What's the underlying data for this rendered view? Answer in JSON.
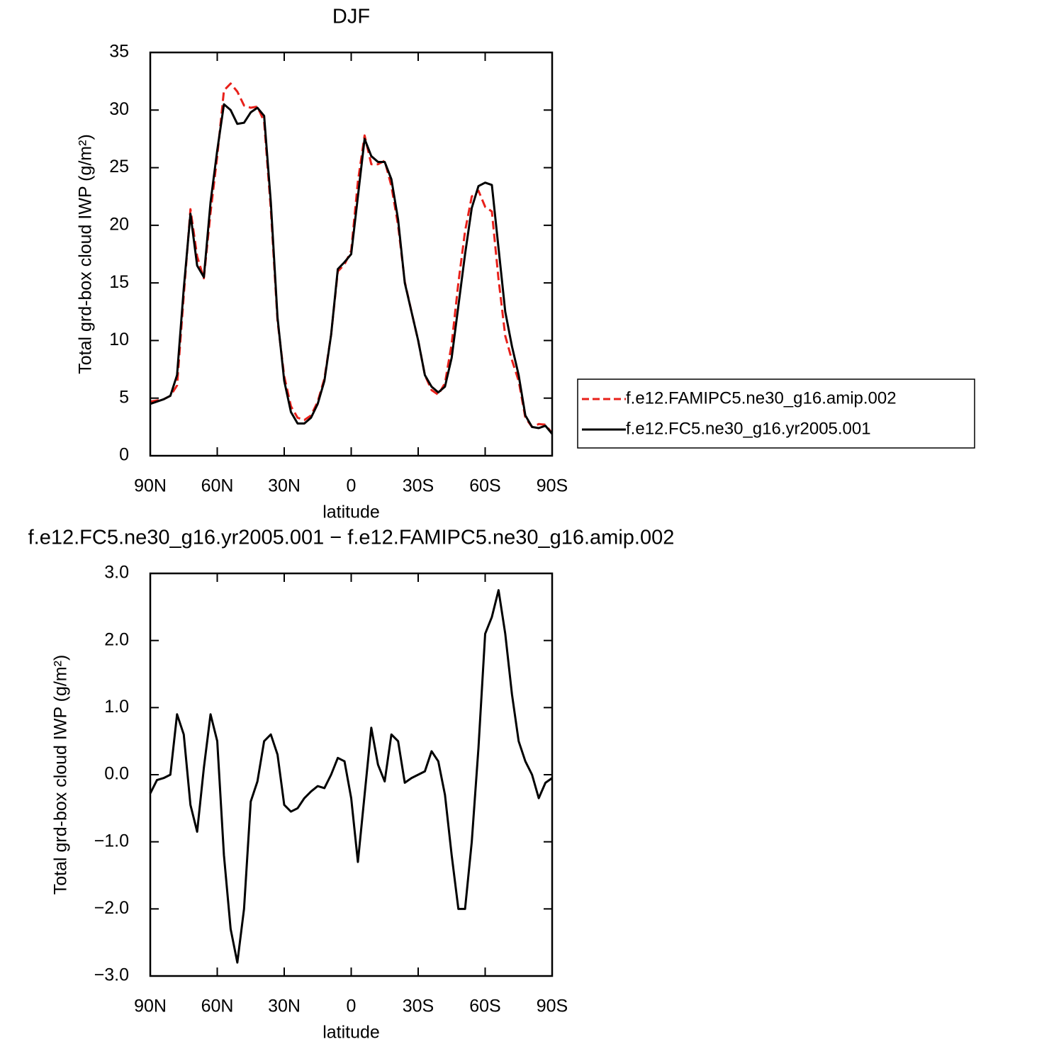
{
  "chart_data": [
    {
      "type": "line",
      "title": "DJF",
      "x_label": "latitude",
      "y_label": "Total grd-box cloud IWP (g/m²)",
      "x": [
        90,
        87,
        84,
        81,
        78,
        75,
        72,
        69,
        66,
        63,
        60,
        57,
        54,
        51,
        48,
        45,
        42,
        39,
        36,
        33,
        30,
        27,
        24,
        21,
        18,
        15,
        12,
        9,
        6,
        3,
        0,
        -3,
        -6,
        -9,
        -12,
        -15,
        -18,
        -21,
        -24,
        -27,
        -30,
        -33,
        -36,
        -39,
        -42,
        -45,
        -48,
        -51,
        -54,
        -57,
        -60,
        -63,
        -66,
        -69,
        -72,
        -75,
        -78,
        -81,
        -84,
        -87,
        -90
      ],
      "xlim": [
        90,
        -90
      ],
      "xticks": [
        {
          "value": 90,
          "label": "90N"
        },
        {
          "value": 60,
          "label": "60N"
        },
        {
          "value": 30,
          "label": "30N"
        },
        0,
        {
          "value": -30,
          "label": "30S"
        },
        {
          "value": -60,
          "label": "60S"
        },
        {
          "value": -90,
          "label": "90S"
        }
      ],
      "ylim": [
        0,
        35
      ],
      "yticks": [
        0,
        5,
        10,
        15,
        20,
        25,
        30,
        35
      ],
      "legend_position": "right",
      "series": [
        {
          "name": "f.e12.FAMIPC5.ne30_g16.amip.002",
          "color": "#e8201a",
          "line_style": "dashed",
          "values": [
            4.7,
            4.8,
            4.9,
            5.2,
            6.1,
            13.9,
            21.4,
            17.3,
            15.4,
            21.1,
            26.0,
            31.7,
            32.3,
            31.6,
            30.4,
            30.2,
            30.3,
            29.0,
            21.4,
            11.7,
            6.9,
            4.3,
            3.3,
            3.1,
            3.5,
            4.7,
            6.7,
            10.5,
            16.0,
            16.6,
            17.8,
            23.8,
            27.8,
            25.3,
            25.3,
            25.6,
            23.4,
            20.0,
            15.1,
            12.5,
            10.0,
            7.0,
            5.7,
            5.3,
            6.3,
            9.7,
            15.0,
            19.5,
            22.5,
            23.0,
            21.6,
            21.2,
            15.3,
            10.4,
            8.3,
            6.5,
            3.3,
            2.5,
            2.75,
            2.7,
            1.95
          ]
        },
        {
          "name": "f.e12.FC5.ne30_g16.yr2005.001",
          "color": "#000000",
          "line_style": "solid",
          "values": [
            4.5,
            4.7,
            4.9,
            5.2,
            7.0,
            14.5,
            21.0,
            16.5,
            15.5,
            22.0,
            26.5,
            30.5,
            30.0,
            28.8,
            28.9,
            29.8,
            30.2,
            29.5,
            22.0,
            12.0,
            6.5,
            3.8,
            2.8,
            2.8,
            3.3,
            4.5,
            6.5,
            10.5,
            16.2,
            16.8,
            17.5,
            22.5,
            27.5,
            26.0,
            25.5,
            25.5,
            24.0,
            20.5,
            15.0,
            12.5,
            10.0,
            7.0,
            6.0,
            5.5,
            6.0,
            8.5,
            13.0,
            17.5,
            21.5,
            23.4,
            23.7,
            23.5,
            18.0,
            12.5,
            9.5,
            7.0,
            3.5,
            2.5,
            2.4,
            2.6,
            1.9
          ]
        }
      ]
    },
    {
      "type": "line",
      "title": "f.e12.FC5.ne30_g16.yr2005.001 − f.e12.FAMIPC5.ne30_g16.amip.002",
      "x_label": "latitude",
      "y_label": "Total grd-box cloud IWP (g/m²)",
      "x": [
        90,
        87,
        84,
        81,
        78,
        75,
        72,
        69,
        66,
        63,
        60,
        57,
        54,
        51,
        48,
        45,
        42,
        39,
        36,
        33,
        30,
        27,
        24,
        21,
        18,
        15,
        12,
        9,
        6,
        3,
        0,
        -3,
        -6,
        -9,
        -12,
        -15,
        -18,
        -21,
        -24,
        -27,
        -30,
        -33,
        -36,
        -39,
        -42,
        -45,
        -48,
        -51,
        -54,
        -57,
        -60,
        -63,
        -66,
        -69,
        -72,
        -75,
        -78,
        -81,
        -84,
        -87,
        -90
      ],
      "xlim": [
        90,
        -90
      ],
      "xticks": [
        {
          "value": 90,
          "label": "90N"
        },
        {
          "value": 60,
          "label": "60N"
        },
        {
          "value": 30,
          "label": "30N"
        },
        0,
        {
          "value": -30,
          "label": "30S"
        },
        {
          "value": -60,
          "label": "60S"
        },
        {
          "value": -90,
          "label": "90S"
        }
      ],
      "ylim": [
        -3,
        3
      ],
      "yticks": [
        {
          "value": -3,
          "label": "−3.0"
        },
        {
          "value": -2,
          "label": "−2.0"
        },
        {
          "value": -1,
          "label": "−1.0"
        },
        {
          "value": 0,
          "label": "0.0"
        },
        {
          "value": 1,
          "label": "1.0"
        },
        {
          "value": 2,
          "label": "2.0"
        },
        {
          "value": 3,
          "label": "3.0"
        }
      ],
      "color": "#000000",
      "values": [
        -0.28,
        -0.08,
        -0.05,
        0.0,
        0.9,
        0.6,
        -0.45,
        -0.85,
        0.1,
        0.9,
        0.5,
        -1.2,
        -2.3,
        -2.8,
        -2.0,
        -0.4,
        -0.1,
        0.5,
        0.6,
        0.3,
        -0.45,
        -0.55,
        -0.5,
        -0.35,
        -0.25,
        -0.17,
        -0.2,
        0.0,
        0.25,
        0.2,
        -0.35,
        -1.3,
        -0.3,
        0.7,
        0.15,
        -0.1,
        0.6,
        0.5,
        -0.12,
        -0.05,
        0.0,
        0.05,
        0.35,
        0.2,
        -0.3,
        -1.2,
        -2.0,
        -2.0,
        -1.0,
        0.4,
        2.1,
        2.35,
        2.75,
        2.1,
        1.2,
        0.5,
        0.2,
        0.0,
        -0.35,
        -0.12,
        -0.05
      ]
    }
  ]
}
